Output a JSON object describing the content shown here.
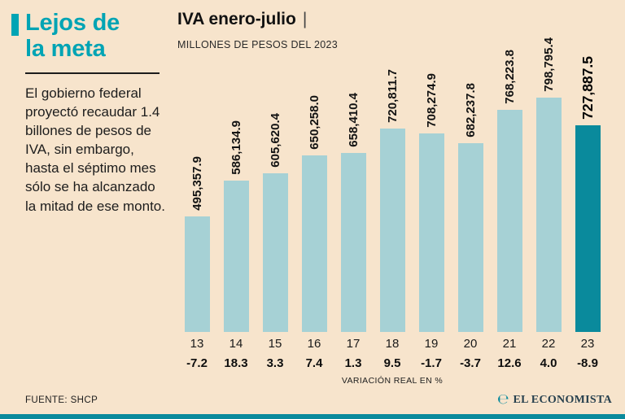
{
  "sidebar": {
    "title_line1": "Lejos de",
    "title_line2": "la meta",
    "body": "El gobierno federal proyectó recaudar 1.4 billones de pesos de IVA, sin embargo, hasta el séptimo mes sólo se ha alcanzado la mitad de ese monto."
  },
  "header": {
    "title": "IVA enero-julio",
    "separator": "|",
    "subtitle": "MILLONES DE PESOS DEL 2023"
  },
  "chart_data": {
    "type": "bar",
    "title": "IVA enero-julio",
    "subtitle": "MILLONES DE PESOS DEL 2023",
    "unit": "millones de pesos del 2023",
    "categories": [
      "13",
      "14",
      "15",
      "16",
      "17",
      "18",
      "19",
      "20",
      "21",
      "22",
      "23"
    ],
    "values": [
      495357.9,
      586134.9,
      605620.4,
      650258.0,
      658410.4,
      720811.7,
      708274.9,
      682237.8,
      768223.8,
      798795.4,
      727887.5
    ],
    "value_labels": [
      "495,357.9",
      "586,134.9",
      "605,620.4",
      "650,258.0",
      "658,410.4",
      "720,811.7",
      "708,274.9",
      "682,237.8",
      "768,223.8",
      "798,795.4",
      "727,887.5"
    ],
    "variations": [
      -7.2,
      18.3,
      3.3,
      7.4,
      1.3,
      9.5,
      -1.7,
      -3.7,
      12.6,
      4.0,
      -8.9
    ],
    "variation_labels": [
      "-7.2",
      "18.3",
      "3.3",
      "7.4",
      "1.3",
      "9.5",
      "-1.7",
      "-3.7",
      "12.6",
      "4.0",
      "-8.9"
    ],
    "variation_axis_label": "VARIACIÓN REAL EN %",
    "highlight_index": 10,
    "ylim": [
      0,
      800000
    ],
    "legend": "none",
    "colors": {
      "bar": "#a6d1d5",
      "highlight": "#0a8a9c"
    }
  },
  "footer": {
    "source": "FUENTE: SHCP",
    "logo_icon": "℮",
    "logo_text": "EL ECONOMISTA"
  },
  "colors": {
    "background": "#f7e4cc",
    "accent": "#00a4b4",
    "bottom_bar": "#0a8a9c",
    "text": "#1d1d1d"
  }
}
